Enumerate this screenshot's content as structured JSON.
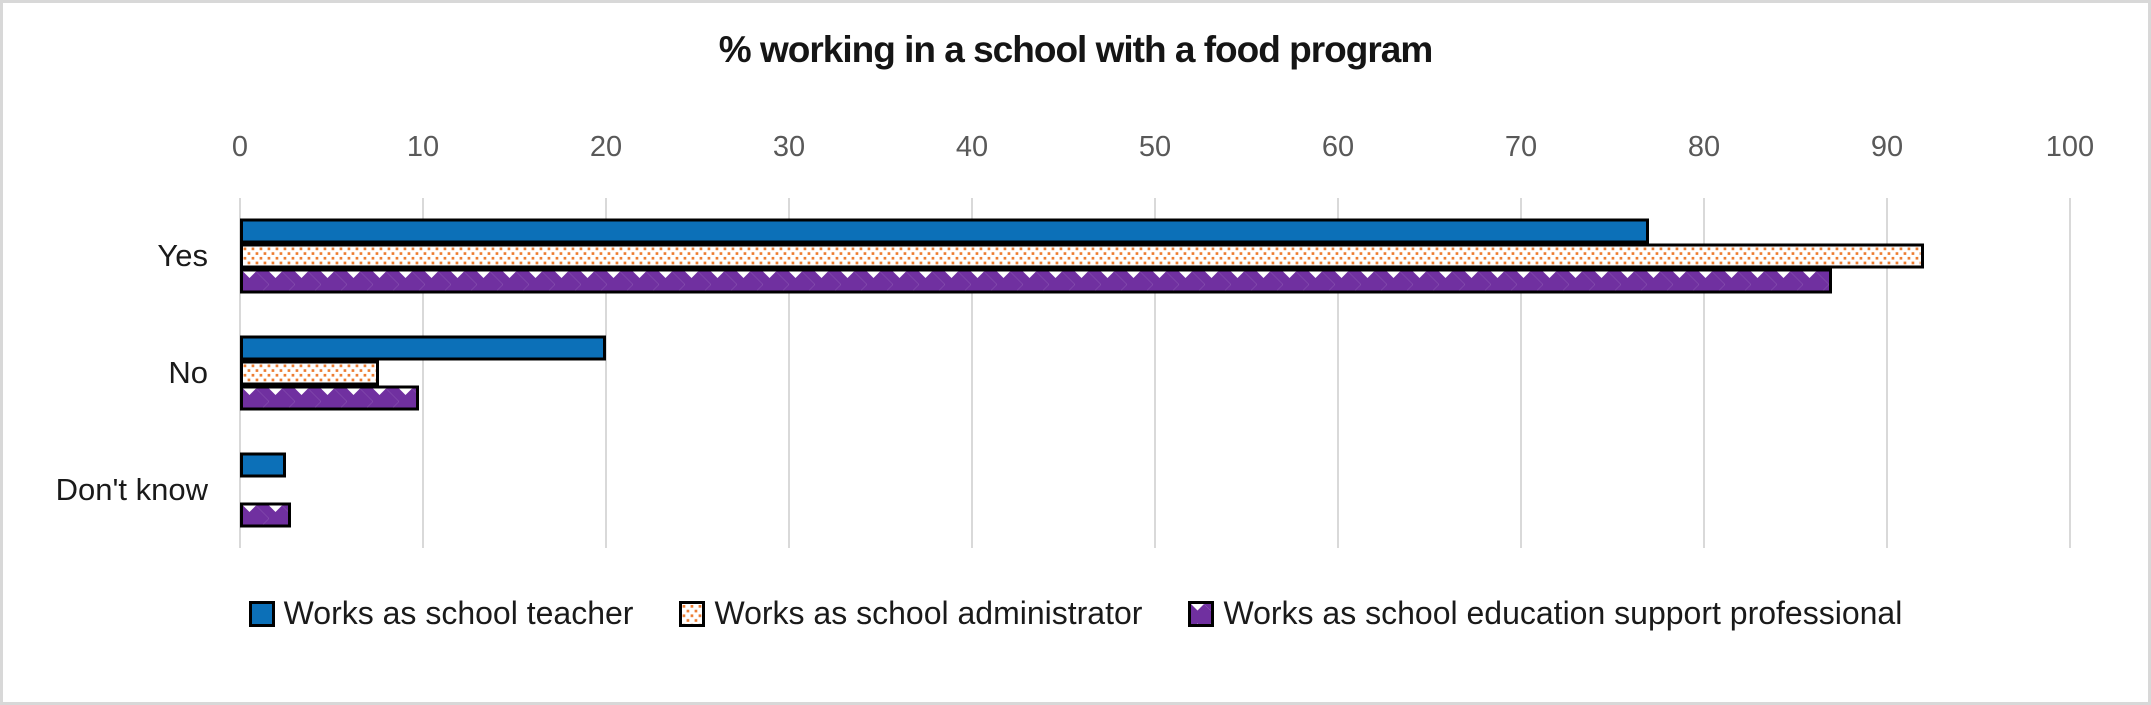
{
  "frame": {
    "background": "#FFFFFF",
    "border_color": "#D8D8D8"
  },
  "chart_data": {
    "type": "bar",
    "orientation": "horizontal",
    "title": "% working in a school with a food program",
    "categories": [
      "Yes",
      "No",
      "Don't know"
    ],
    "series": [
      {
        "name": "Works as school teacher",
        "values": [
          77,
          20,
          2.5
        ],
        "color": "#0C70B8",
        "pattern": "solid"
      },
      {
        "name": "Works as school administrator",
        "values": [
          92,
          7.6,
          0
        ],
        "color": "#ED7D31",
        "pattern": "dots"
      },
      {
        "name": "Works as school education support professional",
        "values": [
          87,
          9.8,
          2.8
        ],
        "color": "#7030A0",
        "pattern": "diamonds"
      }
    ],
    "xlim": [
      0,
      100
    ],
    "x_ticks": [
      0,
      10,
      20,
      30,
      40,
      50,
      60,
      70,
      80,
      90,
      100
    ],
    "grid": "vertical-on",
    "legend_position": "bottom",
    "colors": {
      "gridline": "#D9D9D9",
      "tick_label": "#595959",
      "category_label": "#1A1A1A",
      "title": "#151515",
      "bar_border": "#000000",
      "pattern_background": "#FFFFFF"
    }
  }
}
